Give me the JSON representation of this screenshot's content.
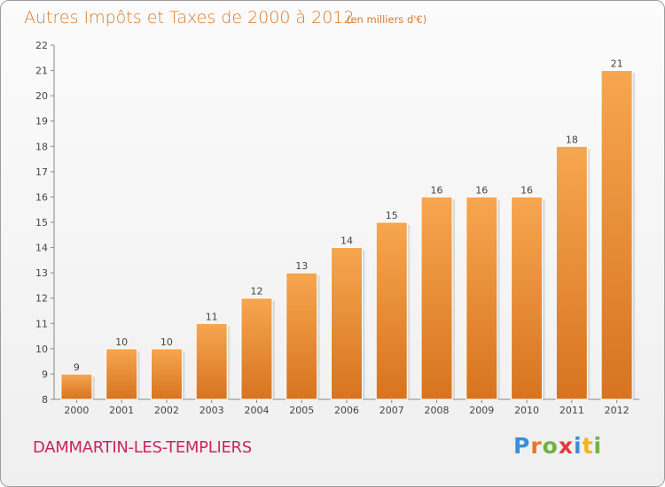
{
  "chart_data": {
    "type": "bar",
    "title": "Autres Impôts et Taxes de 2000 à 2012",
    "subtitle": "(en milliers d'€)",
    "categories": [
      "2000",
      "2001",
      "2002",
      "2003",
      "2004",
      "2005",
      "2006",
      "2007",
      "2008",
      "2009",
      "2010",
      "2011",
      "2012"
    ],
    "values": [
      9,
      10,
      10,
      11,
      12,
      13,
      14,
      15,
      16,
      16,
      16,
      18,
      21
    ],
    "ylim": [
      8,
      22
    ],
    "yticks": [
      8,
      9,
      10,
      11,
      12,
      13,
      14,
      15,
      16,
      17,
      18,
      19,
      20,
      21,
      22
    ],
    "xlabel": "",
    "ylabel": "",
    "grid": false,
    "bar_color": "#f29a45"
  },
  "commune": "DAMMARTIN-LES-TEMPLIERS",
  "logo": {
    "text": "Proxiti",
    "letter_colors": [
      "#3a8fd6",
      "#e8772a",
      "#6cb33f",
      "#e23c3c",
      "#3a8fd6",
      "#f2b51e",
      "#6cb33f"
    ]
  }
}
